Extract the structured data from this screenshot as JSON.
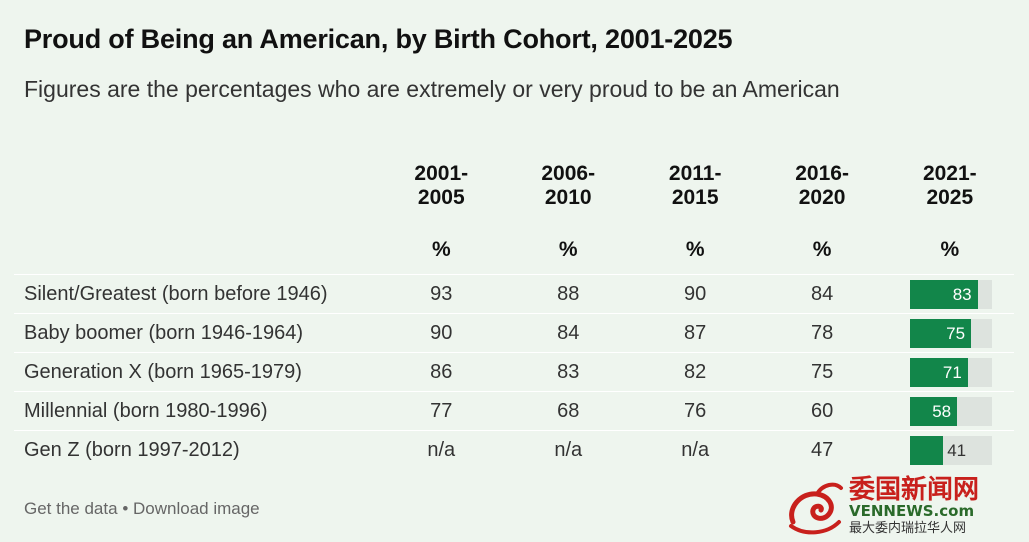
{
  "title": "Proud of Being an American, by Birth Cohort, 2001-2025",
  "subtitle": "Figures are the percentages who are extremely or very proud to be an American",
  "chart_data": {
    "type": "table",
    "title": "Proud of Being an American, by Birth Cohort, 2001-2025",
    "subtitle": "Figures are the percentages who are extremely or very proud to be an American",
    "columns": [
      {
        "line1": "2001-",
        "line2": "2005",
        "unit": "%"
      },
      {
        "line1": "2006-",
        "line2": "2010",
        "unit": "%"
      },
      {
        "line1": "2011-",
        "line2": "2015",
        "unit": "%"
      },
      {
        "line1": "2016-",
        "line2": "2020",
        "unit": "%"
      },
      {
        "line1": "2021-",
        "line2": "2025",
        "unit": "%"
      }
    ],
    "rows": [
      {
        "label": "Silent/Greatest (born before 1946)",
        "values": [
          "93",
          "88",
          "90",
          "84"
        ],
        "bar": 83
      },
      {
        "label": "Baby boomer (born 1946-1964)",
        "values": [
          "90",
          "84",
          "87",
          "78"
        ],
        "bar": 75
      },
      {
        "label": "Generation X (born 1965-1979)",
        "values": [
          "86",
          "83",
          "82",
          "75"
        ],
        "bar": 71
      },
      {
        "label": "Millennial (born 1980-1996)",
        "values": [
          "77",
          "68",
          "76",
          "60"
        ],
        "bar": 58
      },
      {
        "label": "Gen Z (born 1997-2012)",
        "values": [
          "n/a",
          "n/a",
          "n/a",
          "47"
        ],
        "bar": 41
      }
    ],
    "bar_color": "#12864a",
    "track_color": "#dde3de"
  },
  "footer": {
    "get_data": "Get the data",
    "separator": "•",
    "download": "Download image"
  },
  "watermark": {
    "brand": "委国新闻网",
    "site": "VENNEWS.com",
    "tagline": "最大委内瑞拉华人网"
  }
}
